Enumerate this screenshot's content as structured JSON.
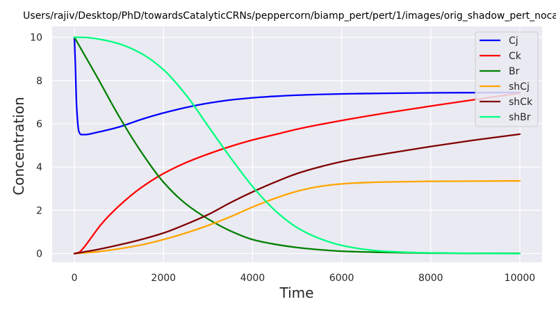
{
  "chart_data": {
    "type": "line",
    "title": "Users/rajiv/Desktop/PhD/towardsCatalyticCRNs/peppercorn/biamp_pert/pert/1/images/orig_shadow_pert_noca",
    "xlabel": "Time",
    "ylabel": "Concentration",
    "xlim": [
      -500,
      10500
    ],
    "ylim": [
      -0.4,
      10.5
    ],
    "xticks": [
      0,
      2000,
      4000,
      6000,
      8000,
      10000
    ],
    "xtick_labels": [
      "0",
      "2000",
      "4000",
      "6000",
      "8000",
      "10000"
    ],
    "yticks": [
      0,
      2,
      4,
      6,
      8,
      10
    ],
    "ytick_labels": [
      "0",
      "2",
      "4",
      "6",
      "8",
      "10"
    ],
    "grid": true,
    "legend_position": "top-right",
    "background": "#eaeaf2",
    "series": [
      {
        "name": "Cj",
        "color": "#0000ff",
        "points": [
          [
            0,
            10.0
          ],
          [
            20,
            8.8
          ],
          [
            50,
            6.8
          ],
          [
            100,
            5.65
          ],
          [
            150,
            5.5
          ],
          [
            250,
            5.5
          ],
          [
            500,
            5.6
          ],
          [
            1000,
            5.85
          ],
          [
            1500,
            6.2
          ],
          [
            2000,
            6.5
          ],
          [
            2500,
            6.75
          ],
          [
            3000,
            6.95
          ],
          [
            3500,
            7.1
          ],
          [
            4000,
            7.2
          ],
          [
            4500,
            7.27
          ],
          [
            5000,
            7.32
          ],
          [
            6000,
            7.38
          ],
          [
            7000,
            7.41
          ],
          [
            8000,
            7.43
          ],
          [
            9000,
            7.44
          ],
          [
            10000,
            7.45
          ]
        ]
      },
      {
        "name": "Ck",
        "color": "#ff0000",
        "points": [
          [
            0,
            0.0
          ],
          [
            100,
            0.05
          ],
          [
            200,
            0.25
          ],
          [
            400,
            0.8
          ],
          [
            600,
            1.35
          ],
          [
            1000,
            2.2
          ],
          [
            1500,
            3.05
          ],
          [
            2000,
            3.7
          ],
          [
            2500,
            4.2
          ],
          [
            3000,
            4.6
          ],
          [
            3500,
            4.95
          ],
          [
            4000,
            5.25
          ],
          [
            4500,
            5.5
          ],
          [
            5000,
            5.75
          ],
          [
            6000,
            6.15
          ],
          [
            7000,
            6.5
          ],
          [
            8000,
            6.82
          ],
          [
            9000,
            7.12
          ],
          [
            10000,
            7.42
          ]
        ]
      },
      {
        "name": "Br",
        "color": "#008000",
        "points": [
          [
            0,
            10.0
          ],
          [
            250,
            9.1
          ],
          [
            500,
            8.2
          ],
          [
            1000,
            6.35
          ],
          [
            1500,
            4.7
          ],
          [
            2000,
            3.3
          ],
          [
            2500,
            2.3
          ],
          [
            3000,
            1.6
          ],
          [
            3500,
            1.05
          ],
          [
            4000,
            0.65
          ],
          [
            4500,
            0.43
          ],
          [
            5000,
            0.28
          ],
          [
            5500,
            0.18
          ],
          [
            6000,
            0.11
          ],
          [
            7000,
            0.05
          ],
          [
            8000,
            0.02
          ],
          [
            9000,
            0.01
          ],
          [
            10000,
            0.01
          ]
        ]
      },
      {
        "name": "shCj",
        "color": "#ffa500",
        "points": [
          [
            0,
            0.0
          ],
          [
            500,
            0.08
          ],
          [
            1000,
            0.22
          ],
          [
            1500,
            0.4
          ],
          [
            2000,
            0.65
          ],
          [
            2500,
            0.95
          ],
          [
            3000,
            1.3
          ],
          [
            3500,
            1.7
          ],
          [
            4000,
            2.15
          ],
          [
            4500,
            2.55
          ],
          [
            5000,
            2.88
          ],
          [
            5500,
            3.1
          ],
          [
            6000,
            3.22
          ],
          [
            6500,
            3.28
          ],
          [
            7000,
            3.31
          ],
          [
            8000,
            3.34
          ],
          [
            9000,
            3.35
          ],
          [
            10000,
            3.36
          ]
        ]
      },
      {
        "name": "shCk",
        "color": "#800000",
        "points": [
          [
            0,
            0.0
          ],
          [
            500,
            0.18
          ],
          [
            1000,
            0.4
          ],
          [
            1500,
            0.65
          ],
          [
            2000,
            0.95
          ],
          [
            2500,
            1.35
          ],
          [
            3000,
            1.8
          ],
          [
            3500,
            2.35
          ],
          [
            4000,
            2.85
          ],
          [
            4500,
            3.3
          ],
          [
            5000,
            3.7
          ],
          [
            5500,
            4.0
          ],
          [
            6000,
            4.25
          ],
          [
            7000,
            4.62
          ],
          [
            8000,
            4.95
          ],
          [
            9000,
            5.25
          ],
          [
            10000,
            5.52
          ]
        ]
      },
      {
        "name": "shBr",
        "color": "#00ff7f",
        "points": [
          [
            0,
            10.0
          ],
          [
            250,
            9.99
          ],
          [
            500,
            9.93
          ],
          [
            1000,
            9.7
          ],
          [
            1500,
            9.25
          ],
          [
            2000,
            8.5
          ],
          [
            2500,
            7.35
          ],
          [
            3000,
            5.9
          ],
          [
            3500,
            4.45
          ],
          [
            4000,
            3.1
          ],
          [
            4500,
            2.0
          ],
          [
            5000,
            1.2
          ],
          [
            5500,
            0.7
          ],
          [
            6000,
            0.38
          ],
          [
            6500,
            0.2
          ],
          [
            7000,
            0.1
          ],
          [
            8000,
            0.03
          ],
          [
            9000,
            0.01
          ],
          [
            10000,
            0.0
          ]
        ]
      }
    ]
  }
}
